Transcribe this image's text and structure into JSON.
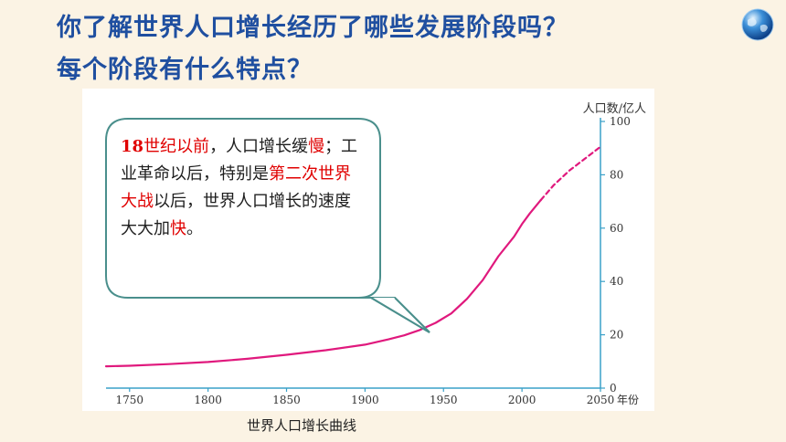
{
  "question": {
    "line1": "你了解世界人口增长经历了哪些发展阶段吗？",
    "line2": "每个阶段有什么特点？"
  },
  "callout": {
    "segments": [
      {
        "text": "18",
        "style": "num"
      },
      {
        "text": "世纪",
        "style": "hl"
      },
      {
        "text": "以前",
        "style": "hl"
      },
      {
        "text": "，人口增长缓",
        "style": "plain"
      },
      {
        "text": "慢",
        "style": "hl"
      },
      {
        "text": "；工业革命以后，特别是",
        "style": "plain"
      },
      {
        "text": "第二次世界大战",
        "style": "hl"
      },
      {
        "text": "以后，世界人口增长的速度大大加",
        "style": "plain"
      },
      {
        "text": "快",
        "style": "hl"
      },
      {
        "text": "。",
        "style": "plain"
      }
    ]
  },
  "caption": "世界人口增长曲线",
  "colors": {
    "title": "#1f4fa0",
    "curve": "#e0197d",
    "axis": "#3aa0c8",
    "callout_border": "#4a8f8c",
    "highlight": "#e00000"
  },
  "chart_data": {
    "type": "line",
    "title": "",
    "xlabel": "年份",
    "ylabel": "人口数/亿人",
    "xlim": [
      1735,
      2050
    ],
    "ylim": [
      0,
      100
    ],
    "x_ticks": [
      1750,
      1800,
      1850,
      1900,
      1950,
      2000,
      2050
    ],
    "y_ticks": [
      0,
      20,
      40,
      60,
      80,
      100
    ],
    "series": [
      {
        "name": "",
        "style": "solid",
        "x": [
          1735,
          1750,
          1775,
          1800,
          1825,
          1850,
          1875,
          1900,
          1915,
          1925,
          1935,
          1945,
          1955,
          1965,
          1975,
          1985,
          1995,
          2000,
          2005,
          2012
        ],
        "y": [
          8.2,
          8.4,
          9.0,
          9.8,
          11.0,
          12.5,
          14.2,
          16.3,
          18.3,
          19.8,
          21.8,
          24.5,
          28.0,
          33.5,
          40.5,
          49.5,
          56.8,
          61.5,
          65.5,
          70.5
        ]
      },
      {
        "name": "",
        "style": "dashed",
        "x": [
          2012,
          2020,
          2030,
          2040,
          2050
        ],
        "y": [
          70.5,
          76.0,
          81.5,
          86.0,
          90.5
        ]
      }
    ],
    "grid": false,
    "legend": "none"
  }
}
